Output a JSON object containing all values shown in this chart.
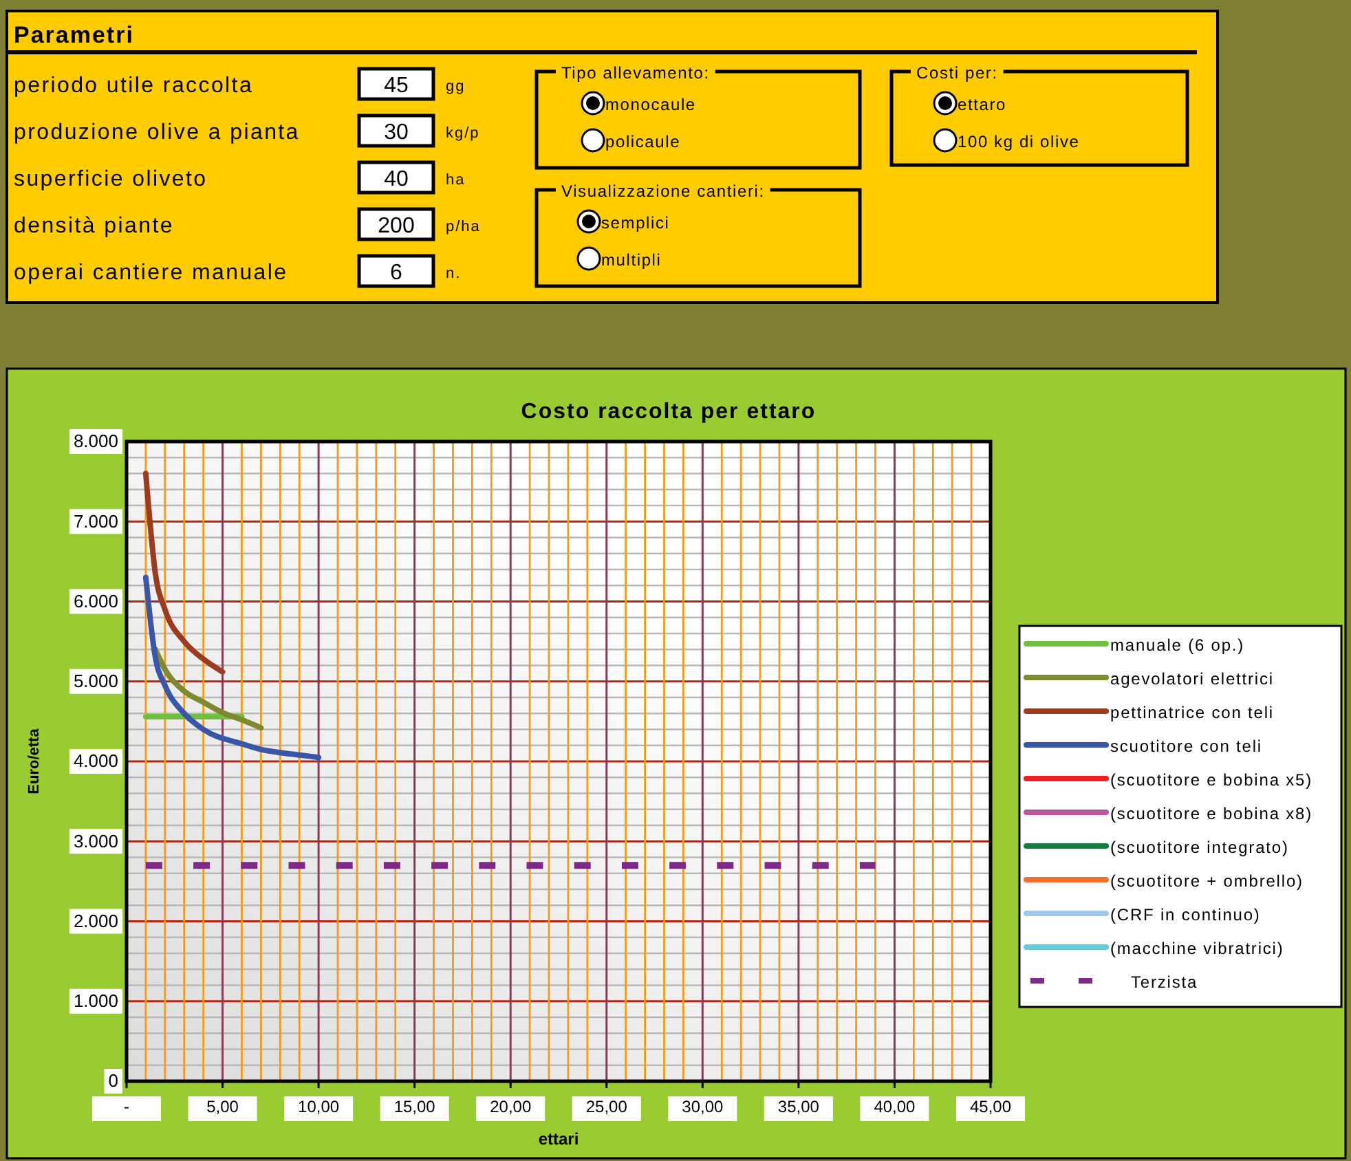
{
  "chart_data": [
    {
      "type": "other",
      "title": "Parametri",
      "annotations": [
        "periodo utile raccolta",
        "45",
        "gg",
        "produzione olive a pianta",
        "30",
        "kg/p",
        "superficie oliveto",
        "40",
        "ha",
        "densità piante",
        "200",
        "p/ha",
        "operai cantiere manuale",
        "6",
        "n.",
        "Tipo allevamento:",
        "monocaule",
        "policaule",
        "Visualizzazione cantieri:",
        "semplici",
        "multipli",
        "Costi per:",
        "ettaro",
        "100 kg di olive"
      ]
    },
    {
      "type": "line",
      "title": "Costo raccolta per ettaro",
      "xlabel": "ettari",
      "ylabel": "Euro/etta",
      "xlim": [
        0,
        45
      ],
      "ylim": [
        0,
        8000
      ],
      "xticks": [
        {
          "value": 0,
          "label": "-"
        },
        {
          "value": 1,
          "label": null
        },
        {
          "value": 2,
          "label": null
        },
        {
          "value": 3,
          "label": null
        },
        {
          "value": 4,
          "label": null
        },
        {
          "value": 5,
          "label": "5,00"
        },
        {
          "value": 6,
          "label": null
        },
        {
          "value": 7,
          "label": null
        },
        {
          "value": 8,
          "label": null
        },
        {
          "value": 9,
          "label": null
        },
        {
          "value": 10,
          "label": "10,00"
        },
        {
          "value": 11,
          "label": null
        },
        {
          "value": 12,
          "label": null
        },
        {
          "value": 13,
          "label": null
        },
        {
          "value": 14,
          "label": null
        },
        {
          "value": 15,
          "label": "15,00"
        },
        {
          "value": 16,
          "label": null
        },
        {
          "value": 17,
          "label": null
        },
        {
          "value": 18,
          "label": null
        },
        {
          "value": 19,
          "label": null
        },
        {
          "value": 20,
          "label": "20,00"
        },
        {
          "value": 21,
          "label": null
        },
        {
          "value": 22,
          "label": null
        },
        {
          "value": 23,
          "label": null
        },
        {
          "value": 24,
          "label": null
        },
        {
          "value": 25,
          "label": "25,00"
        },
        {
          "value": 26,
          "label": null
        },
        {
          "value": 27,
          "label": null
        },
        {
          "value": 28,
          "label": null
        },
        {
          "value": 29,
          "label": null
        },
        {
          "value": 30,
          "label": "30,00"
        },
        {
          "value": 31,
          "label": null
        },
        {
          "value": 32,
          "label": null
        },
        {
          "value": 33,
          "label": null
        },
        {
          "value": 34,
          "label": null
        },
        {
          "value": 35,
          "label": "35,00"
        },
        {
          "value": 36,
          "label": null
        },
        {
          "value": 37,
          "label": null
        },
        {
          "value": 38,
          "label": null
        },
        {
          "value": 39,
          "label": null
        },
        {
          "value": 40,
          "label": "40,00"
        },
        {
          "value": 41,
          "label": null
        },
        {
          "value": 42,
          "label": null
        },
        {
          "value": 43,
          "label": null
        },
        {
          "value": 44,
          "label": null
        },
        {
          "value": 45,
          "label": "45,00"
        }
      ],
      "yticks": [
        0,
        {
          "value": 1000,
          "label": "1.000"
        },
        {
          "value": 2000,
          "label": "2.000"
        },
        {
          "value": 3000,
          "label": "3.000"
        },
        {
          "value": 4000,
          "label": "4.000"
        },
        {
          "value": 5000,
          "label": "5.000"
        },
        {
          "value": 6000,
          "label": "6.000"
        },
        {
          "value": 7000,
          "label": "7.000"
        },
        {
          "value": 8000,
          "label": "8.000"
        }
      ],
      "grid": true,
      "legend": "right",
      "marker": "none",
      "line_style": "solid",
      "series": [
        {
          "name": "manuale (6 op.)",
          "color": "#70c040",
          "x": [
            1,
            2,
            3,
            4,
            5,
            6
          ],
          "values": [
            4560,
            4560,
            4560,
            4560,
            4560,
            4560
          ]
        },
        {
          "name": "agevolatori elettrici",
          "color": "#7f8a2e",
          "x": [
            1.5,
            2,
            3,
            4,
            5,
            6,
            7
          ],
          "values": [
            5400,
            5150,
            4880,
            4740,
            4610,
            4520,
            4420
          ]
        },
        {
          "name": "pettinatrice con teli",
          "color": "#9a3c20",
          "x": [
            1,
            1.5,
            2,
            3,
            4,
            5
          ],
          "values": [
            7600,
            6350,
            5900,
            5500,
            5280,
            5120
          ]
        },
        {
          "name": "scuotitore con teli",
          "color": "#3a56a8",
          "x": [
            1,
            1.5,
            2,
            3,
            4,
            6,
            7,
            8,
            9,
            10
          ],
          "values": [
            6300,
            5300,
            4950,
            4600,
            4400,
            4220,
            4150,
            4110,
            4080,
            4050
          ]
        },
        {
          "name": "(scuotitore e bobina x5)",
          "color": "#ee2222"
        },
        {
          "name": "(scuotitore e bobina x8)",
          "color": "#bb55a0"
        },
        {
          "name": "(scuotitore integrato)",
          "color": "#128040"
        },
        {
          "name": "(scuotitore + ombrello)",
          "color": "#f07030"
        },
        {
          "name": "(CRF in continuo)",
          "color": "#a0c8ea"
        },
        {
          "name": "(macchine vibratrici)",
          "color": "#66ccdd"
        },
        {
          "name": "Terzista",
          "color": "#7f2a8a",
          "line_style": "dashed",
          "x": [
            1,
            39
          ],
          "values": [
            2700,
            2700
          ]
        }
      ]
    }
  ]
}
